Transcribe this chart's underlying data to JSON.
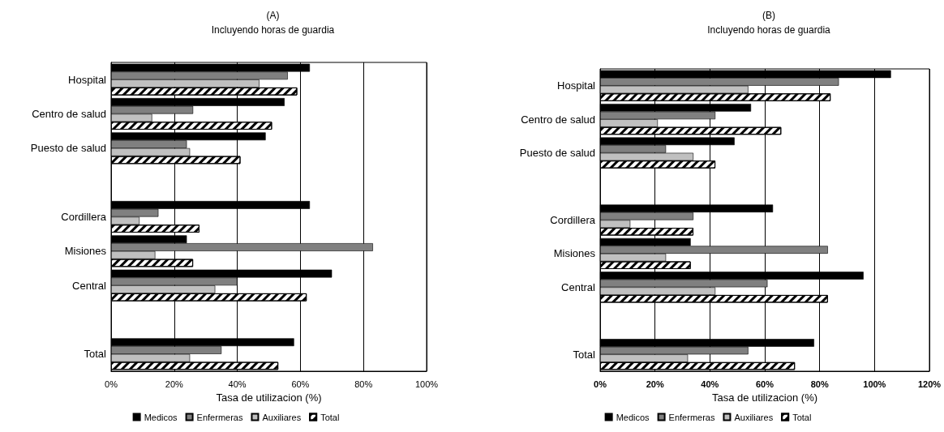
{
  "chart_data": [
    {
      "type": "bar",
      "orientation": "horizontal",
      "title": "(A)",
      "subtitle": "Incluyendo horas de guardia",
      "xlabel": "Tasa de utilizacion (%)",
      "categories": [
        "Hospital",
        "Centro de salud",
        "Puesto de salud",
        null,
        "Cordillera",
        "Misiones",
        "Central",
        null,
        "Total"
      ],
      "series": [
        {
          "name": "Medicos",
          "color": "#000000",
          "values": [
            63,
            55,
            49,
            null,
            63,
            24,
            70,
            null,
            58
          ]
        },
        {
          "name": "Enfermeras",
          "color": "#808080",
          "values": [
            56,
            26,
            24,
            null,
            15,
            83,
            40,
            null,
            35
          ]
        },
        {
          "name": "Auxiliares",
          "color": "#c0c0c0",
          "values": [
            47,
            13,
            25,
            null,
            9,
            14,
            33,
            null,
            25
          ]
        },
        {
          "name": "Total",
          "color": "#ffffff",
          "values": [
            59,
            51,
            41,
            null,
            28,
            26,
            62,
            null,
            53
          ]
        }
      ],
      "xlim": [
        0,
        100
      ],
      "xticks": [
        {
          "value": 0,
          "label": "0%"
        },
        {
          "value": 20,
          "label": "20%"
        },
        {
          "value": 40,
          "label": "40%"
        },
        {
          "value": 60,
          "label": "60%"
        },
        {
          "value": 80,
          "label": "80%"
        },
        {
          "value": 100,
          "label": "100%"
        }
      ],
      "grid": "x",
      "legend": "bottom"
    },
    {
      "type": "bar",
      "orientation": "horizontal",
      "title": "(B)",
      "subtitle": "Incluyendo horas de guardia",
      "xlabel": "Tasa de utilizacion (%)",
      "categories": [
        "Hospital",
        "Centro de salud",
        "Puesto de salud",
        null,
        "Cordillera",
        "Misiones",
        "Central",
        null,
        "Total"
      ],
      "series": [
        {
          "name": "Medicos",
          "color": "#000000",
          "values": [
            106,
            55,
            49,
            null,
            63,
            33,
            96,
            null,
            78
          ]
        },
        {
          "name": "Enfermeras",
          "color": "#808080",
          "values": [
            87,
            42,
            24,
            null,
            34,
            83,
            61,
            null,
            54
          ]
        },
        {
          "name": "Auxiliares",
          "color": "#c0c0c0",
          "values": [
            54,
            21,
            34,
            null,
            11,
            24,
            42,
            null,
            32
          ]
        },
        {
          "name": "Total",
          "color": "#ffffff",
          "values": [
            84,
            66,
            42,
            null,
            34,
            33,
            83,
            null,
            71
          ]
        }
      ],
      "xlim": [
        0,
        120
      ],
      "xticks": [
        {
          "value": 0,
          "label": "0%"
        },
        {
          "value": 20,
          "label": "20%"
        },
        {
          "value": 40,
          "label": "40%"
        },
        {
          "value": 60,
          "label": "60%"
        },
        {
          "value": 80,
          "label": "80%"
        },
        {
          "value": 100,
          "label": "100%"
        },
        {
          "value": 120,
          "label": "120%"
        }
      ],
      "grid": "x",
      "legend": "bottom"
    }
  ]
}
